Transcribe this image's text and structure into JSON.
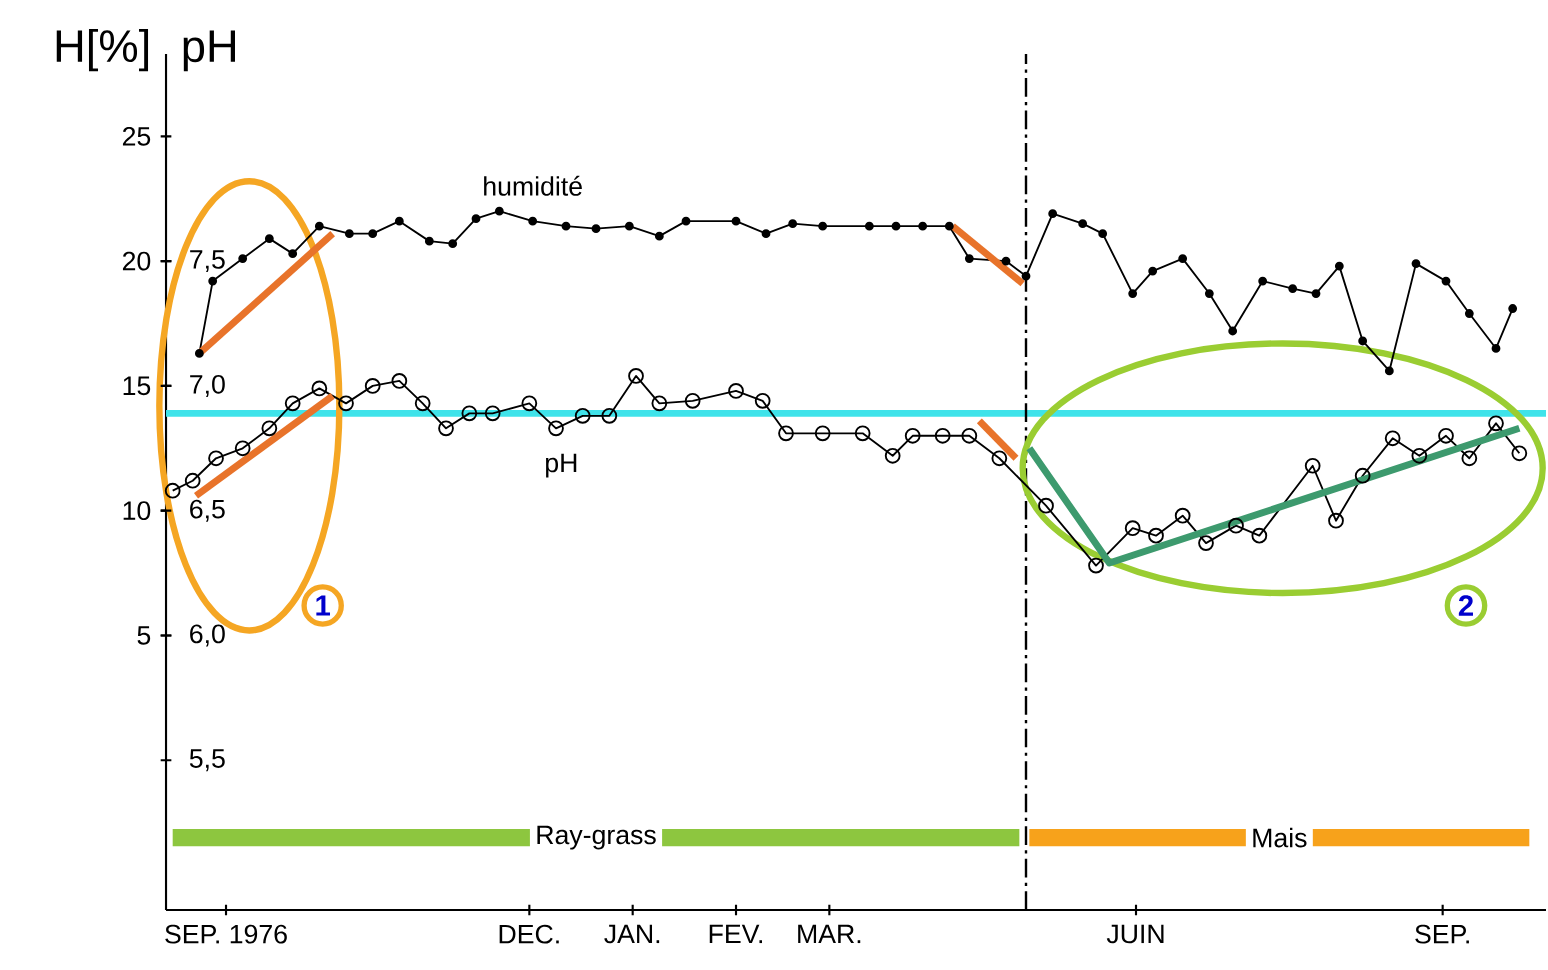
{
  "chart_data": {
    "type": "line",
    "ylabel": "H[%]",
    "y2label": "pH",
    "xlim": [
      "1976-08-14",
      "1977-10-02"
    ],
    "xticks": [
      {
        "value": "1976-09-01",
        "label": "SEP. 1976"
      },
      {
        "value": "1976-12-01",
        "label": "DEC."
      },
      {
        "value": "1977-01-01",
        "label": "JAN."
      },
      {
        "value": "1977-02-01",
        "label": "FEV."
      },
      {
        "value": "1977-03-01",
        "label": "MAR."
      },
      {
        "value": "1977-06-01",
        "label": "JUIN"
      },
      {
        "value": "1977-09-01",
        "label": "SEP."
      }
    ],
    "ylim": [
      -6,
      28.3
    ],
    "yticks": [
      5,
      10,
      15,
      20,
      25
    ],
    "y2lim": [
      4.9,
      8.33
    ],
    "y2ticks": [
      {
        "value": 5.5,
        "label": "5,5"
      },
      {
        "value": 6.0,
        "label": "6,0"
      },
      {
        "value": 6.5,
        "label": "6,5"
      },
      {
        "value": 7.0,
        "label": "7,0"
      },
      {
        "value": 7.5,
        "label": "7,5"
      }
    ],
    "grid": false,
    "series": [
      {
        "name": "humidité",
        "color": "#000000",
        "marker": "circle",
        "x": [
          "1976-08-24",
          "1976-08-28",
          "1976-09-06",
          "1976-09-14",
          "1976-09-21",
          "1976-09-29",
          "1976-10-08",
          "1976-10-15",
          "1976-10-23",
          "1976-11-01",
          "1976-11-08",
          "1976-11-15",
          "1976-11-22",
          "1976-12-02",
          "1976-12-12",
          "1976-12-21",
          "1976-12-31",
          "1977-01-09",
          "1977-01-17",
          "1977-02-01",
          "1977-02-10",
          "1977-02-18",
          "1977-02-27",
          "1977-03-13",
          "1977-03-21",
          "1977-03-29",
          "1977-04-06",
          "1977-04-12",
          "1977-04-23",
          "1977-04-29",
          "1977-05-07",
          "1977-05-16",
          "1977-05-22",
          "1977-05-31",
          "1977-06-06",
          "1977-06-15",
          "1977-06-23",
          "1977-06-30",
          "1977-07-09",
          "1977-07-18",
          "1977-07-25",
          "1977-08-01",
          "1977-08-08",
          "1977-08-16",
          "1977-08-24",
          "1977-09-02",
          "1977-09-09",
          "1977-09-17",
          "1977-09-22"
        ],
        "values": [
          16.3,
          19.2,
          20.1,
          20.9,
          20.3,
          21.4,
          21.1,
          21.1,
          21.6,
          20.8,
          20.7,
          21.7,
          22.0,
          21.6,
          21.4,
          21.3,
          21.4,
          21.0,
          21.6,
          21.6,
          21.1,
          21.5,
          21.4,
          21.4,
          21.4,
          21.4,
          21.4,
          20.1,
          20.0,
          19.4,
          21.9,
          21.5,
          21.1,
          18.7,
          19.6,
          20.1,
          18.7,
          17.2,
          19.2,
          18.9,
          18.7,
          19.8,
          16.8,
          15.6,
          19.9,
          19.2,
          17.9,
          16.5,
          18.1
        ]
      },
      {
        "name": "pH",
        "color": "#000000",
        "marker": "circle",
        "axis": "y2",
        "x": [
          "1976-08-16",
          "1976-08-22",
          "1976-08-29",
          "1976-09-06",
          "1976-09-14",
          "1976-09-21",
          "1976-09-29",
          "1976-10-07",
          "1976-10-15",
          "1976-10-23",
          "1976-10-30",
          "1976-11-06",
          "1976-11-13",
          "1976-11-20",
          "1976-12-01",
          "1976-12-09",
          "1976-12-17",
          "1976-12-25",
          "1977-01-02",
          "1977-01-09",
          "1977-01-19",
          "1977-02-01",
          "1977-02-09",
          "1977-02-16",
          "1977-02-27",
          "1977-03-11",
          "1977-03-20",
          "1977-03-26",
          "1977-04-04",
          "1977-04-12",
          "1977-04-21",
          "1977-05-05",
          "1977-05-20",
          "1977-05-31",
          "1977-06-07",
          "1977-06-15",
          "1977-06-22",
          "1977-07-01",
          "1977-07-08",
          "1977-07-24",
          "1977-07-31",
          "1977-08-08",
          "1977-08-17",
          "1977-08-25",
          "1977-09-02",
          "1977-09-09",
          "1977-09-17",
          "1977-09-24"
        ],
        "values": [
          6.58,
          6.62,
          6.71,
          6.75,
          6.83,
          6.93,
          6.99,
          6.93,
          7.0,
          7.02,
          6.93,
          6.83,
          6.89,
          6.89,
          6.93,
          6.83,
          6.88,
          6.88,
          7.04,
          6.93,
          6.94,
          6.98,
          6.94,
          6.81,
          6.81,
          6.81,
          6.72,
          6.8,
          6.8,
          6.8,
          6.71,
          6.52,
          6.28,
          6.43,
          6.4,
          6.48,
          6.37,
          6.44,
          6.4,
          6.68,
          6.46,
          6.64,
          6.79,
          6.72,
          6.8,
          6.71,
          6.85,
          6.73
        ]
      },
      {
        "type": "line",
        "color": "#e8732a",
        "marker": "none",
        "x": [
          "1976-08-24",
          "1976-10-03"
        ],
        "values": [
          16.3,
          21.1
        ]
      },
      {
        "type": "line",
        "color": "#e8732a",
        "marker": "none",
        "axis": "y2",
        "x": [
          "1976-08-23",
          "1976-10-03"
        ],
        "values": [
          6.56,
          6.96
        ]
      },
      {
        "type": "line",
        "color": "#e8732a",
        "marker": "none",
        "x": [
          "1977-04-07",
          "1977-04-28"
        ],
        "values": [
          21.4,
          19.1
        ]
      },
      {
        "type": "line",
        "color": "#e8732a",
        "marker": "none",
        "axis": "y2",
        "x": [
          "1977-04-15",
          "1977-04-26"
        ],
        "values": [
          6.86,
          6.71
        ]
      },
      {
        "type": "line",
        "color": "#3d9a6e",
        "marker": "none",
        "axis": "y2",
        "x": [
          "1977-04-30",
          "1977-05-24",
          "1977-09-24"
        ],
        "values": [
          6.75,
          6.29,
          6.83
        ]
      },
      {
        "type": "line",
        "name": "Ray-grass",
        "color": "#8dc63f",
        "marker": "none",
        "x": [
          "1976-08-16",
          "1977-04-27"
        ],
        "values": [
          -3.1,
          -3.1
        ]
      },
      {
        "type": "line",
        "name": "Mais",
        "color": "#f7a21b",
        "marker": "none",
        "x": [
          "1977-04-30",
          "1977-09-27"
        ],
        "values": [
          -3.1,
          -3.1
        ]
      }
    ],
    "ref_lines": [
      {
        "axis": "y",
        "value": 13.9,
        "color": "#3fe3ea",
        "line_style": "solid"
      },
      {
        "axis": "x",
        "value": "1977-04-29",
        "color": "#000000",
        "line_style": "dashed"
      }
    ],
    "annotations": [
      {
        "text": "1",
        "x": "1976-09-30",
        "y": 6.2
      },
      {
        "text": "2",
        "x": "1977-09-08",
        "y": 6.2
      }
    ]
  }
}
